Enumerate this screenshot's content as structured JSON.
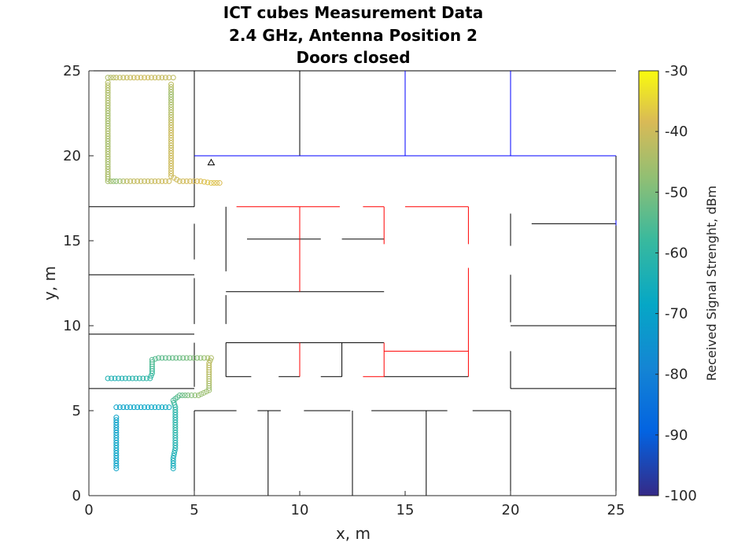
{
  "chart_data": {
    "type": "scatter",
    "title": [
      "ICT cubes Measurement Data",
      "2.4 GHz, Antenna Position 2",
      "Doors closed"
    ],
    "xlabel": "x, m",
    "ylabel": "y, m",
    "xlim": [
      0,
      25
    ],
    "ylim": [
      0,
      25
    ],
    "x_ticks": [
      "0",
      "5",
      "10",
      "15",
      "20",
      "25"
    ],
    "y_ticks": [
      "0",
      "5",
      "10",
      "15",
      "20",
      "25"
    ],
    "grid": false,
    "colorbar": {
      "label": "Received Signal Strenght, dBm",
      "range": [
        -100,
        -30
      ],
      "ticks": [
        "-30",
        "-40",
        "-50",
        "-60",
        "-70",
        "-80",
        "-90",
        "-100"
      ],
      "colormap": "parula"
    },
    "antenna": {
      "x": 5.8,
      "y": 19.6,
      "marker": "triangle"
    },
    "colors": {
      "black_walls": "#000000",
      "blue_walls": "#0000ff",
      "red_walls": "#ff0000",
      "marker_edge": "#000000"
    },
    "walls": {
      "black": [
        [
          [
            0,
            25
          ],
          [
            25,
            25
          ]
        ],
        [
          [
            0,
            0
          ],
          [
            25,
            0
          ]
        ],
        [
          [
            0,
            0
          ],
          [
            0,
            25
          ]
        ],
        [
          [
            25,
            0
          ],
          [
            25,
            20
          ]
        ],
        [
          [
            5,
            25
          ],
          [
            5,
            20
          ]
        ],
        [
          [
            10,
            25
          ],
          [
            10,
            20
          ]
        ],
        [
          [
            5,
            20
          ],
          [
            5,
            17
          ]
        ],
        [
          [
            5,
            16
          ],
          [
            5,
            13.9
          ]
        ],
        [
          [
            5,
            12.8
          ],
          [
            5,
            10.1
          ]
        ],
        [
          [
            5,
            9
          ],
          [
            5,
            6.4
          ]
        ],
        [
          [
            5,
            5
          ],
          [
            5,
            0
          ]
        ],
        [
          [
            0,
            17
          ],
          [
            5,
            17
          ]
        ],
        [
          [
            0,
            13
          ],
          [
            5,
            13
          ]
        ],
        [
          [
            0,
            9.5
          ],
          [
            5,
            9.5
          ]
        ],
        [
          [
            0,
            6.3
          ],
          [
            5,
            6.3
          ]
        ],
        [
          [
            6.5,
            17
          ],
          [
            6.5,
            13.2
          ]
        ],
        [
          [
            6.5,
            11.8
          ],
          [
            6.5,
            10.1
          ]
        ],
        [
          [
            6.5,
            9
          ],
          [
            6.5,
            7
          ]
        ],
        [
          [
            6.5,
            12
          ],
          [
            14,
            12
          ]
        ],
        [
          [
            6.5,
            9
          ],
          [
            14,
            9
          ]
        ],
        [
          [
            7.5,
            15.1
          ],
          [
            11,
            15.1
          ]
        ],
        [
          [
            12,
            15.1
          ],
          [
            14,
            15.1
          ]
        ],
        [
          [
            6.5,
            7
          ],
          [
            7.7,
            7
          ]
        ],
        [
          [
            9,
            7
          ],
          [
            10,
            7
          ]
        ],
        [
          [
            11,
            7
          ],
          [
            12,
            7
          ]
        ],
        [
          [
            12,
            9
          ],
          [
            12,
            7
          ]
        ],
        [
          [
            14,
            7
          ],
          [
            18,
            7
          ]
        ],
        [
          [
            5,
            5
          ],
          [
            7,
            5
          ]
        ],
        [
          [
            8,
            5
          ],
          [
            9.1,
            5
          ]
        ],
        [
          [
            10.2,
            5
          ],
          [
            12.4,
            5
          ]
        ],
        [
          [
            13.4,
            5
          ],
          [
            17,
            5
          ]
        ],
        [
          [
            18.2,
            5
          ],
          [
            20,
            5
          ]
        ],
        [
          [
            8.5,
            5
          ],
          [
            8.5,
            0
          ]
        ],
        [
          [
            12.5,
            5
          ],
          [
            12.5,
            0
          ]
        ],
        [
          [
            16,
            5
          ],
          [
            16,
            0
          ]
        ],
        [
          [
            20,
            5
          ],
          [
            20,
            0
          ]
        ],
        [
          [
            20,
            16.6
          ],
          [
            20,
            14.7
          ]
        ],
        [
          [
            20,
            13
          ],
          [
            20,
            10.2
          ]
        ],
        [
          [
            20,
            8.5
          ],
          [
            20,
            6.3
          ]
        ],
        [
          [
            20,
            10
          ],
          [
            25,
            10
          ]
        ],
        [
          [
            20,
            6.3
          ],
          [
            25,
            6.3
          ]
        ],
        [
          [
            21,
            16
          ],
          [
            25,
            16
          ]
        ]
      ],
      "blue": [
        [
          [
            5,
            20
          ],
          [
            25,
            20
          ]
        ],
        [
          [
            15,
            25
          ],
          [
            15,
            20
          ]
        ],
        [
          [
            20,
            25
          ],
          [
            20,
            20
          ]
        ],
        [
          [
            25,
            16.2
          ],
          [
            25,
            15.9
          ]
        ]
      ],
      "red": [
        [
          [
            7,
            17
          ],
          [
            11.9,
            17
          ]
        ],
        [
          [
            13,
            17
          ],
          [
            14,
            17
          ]
        ],
        [
          [
            15,
            17
          ],
          [
            18,
            17
          ]
        ],
        [
          [
            10,
            17
          ],
          [
            10,
            12
          ]
        ],
        [
          [
            14,
            17
          ],
          [
            14,
            14.8
          ]
        ],
        [
          [
            18,
            17
          ],
          [
            18,
            14.8
          ]
        ],
        [
          [
            18,
            13.4
          ],
          [
            18,
            7
          ]
        ],
        [
          [
            14,
            9
          ],
          [
            14,
            7
          ]
        ],
        [
          [
            14,
            8.5
          ],
          [
            18,
            8.5
          ]
        ],
        [
          [
            10,
            9
          ],
          [
            10,
            7
          ]
        ],
        [
          [
            13,
            7
          ],
          [
            14,
            7
          ]
        ]
      ]
    },
    "series": [
      {
        "points": [
          [
            0.9,
            24.6,
            -44
          ],
          [
            1.3,
            24.6,
            -42
          ],
          [
            1.8,
            24.6,
            -41
          ],
          [
            2.3,
            24.6,
            -40
          ],
          [
            2.8,
            24.6,
            -40
          ],
          [
            3.3,
            24.6,
            -41
          ],
          [
            3.8,
            24.6,
            -41
          ],
          [
            4.0,
            24.6,
            -42
          ],
          [
            0.9,
            24.3,
            -43
          ],
          [
            0.9,
            23.7,
            -44
          ],
          [
            0.9,
            23.1,
            -44
          ],
          [
            0.9,
            22.5,
            -45
          ],
          [
            0.9,
            21.9,
            -45
          ],
          [
            0.9,
            21.3,
            -44
          ],
          [
            0.9,
            20.7,
            -45
          ],
          [
            0.9,
            20.1,
            -44
          ],
          [
            0.9,
            19.5,
            -45
          ],
          [
            0.9,
            18.9,
            -44
          ],
          [
            0.9,
            18.5,
            -45
          ],
          [
            1.3,
            18.5,
            -48
          ],
          [
            1.8,
            18.5,
            -42
          ],
          [
            2.3,
            18.5,
            -41
          ],
          [
            2.8,
            18.5,
            -41
          ],
          [
            3.3,
            18.5,
            -40
          ],
          [
            3.8,
            18.5,
            -40
          ],
          [
            3.9,
            24.2,
            -42
          ],
          [
            3.9,
            23.6,
            -46
          ],
          [
            3.9,
            23.0,
            -44
          ],
          [
            3.9,
            22.4,
            -43
          ],
          [
            3.9,
            21.8,
            -41
          ],
          [
            3.9,
            21.2,
            -40
          ],
          [
            3.9,
            20.6,
            -41
          ],
          [
            3.9,
            20.0,
            -40
          ],
          [
            3.9,
            19.4,
            -40
          ],
          [
            3.9,
            18.8,
            -40
          ],
          [
            4.3,
            18.5,
            -40
          ],
          [
            4.8,
            18.5,
            -39
          ],
          [
            5.3,
            18.5,
            -38
          ],
          [
            5.8,
            18.4,
            -37
          ],
          [
            6.2,
            18.4,
            -38
          ],
          [
            0.9,
            6.9,
            -63
          ],
          [
            1.4,
            6.9,
            -64
          ],
          [
            1.9,
            6.9,
            -62
          ],
          [
            2.4,
            6.9,
            -61
          ],
          [
            2.9,
            6.9,
            -60
          ],
          [
            3.0,
            7.2,
            -58
          ],
          [
            3.0,
            7.6,
            -56
          ],
          [
            3.0,
            8.0,
            -55
          ],
          [
            3.3,
            8.1,
            -54
          ],
          [
            3.8,
            8.1,
            -53
          ],
          [
            4.3,
            8.1,
            -52
          ],
          [
            4.8,
            8.1,
            -50
          ],
          [
            5.3,
            8.1,
            -48
          ],
          [
            5.8,
            8.1,
            -44
          ],
          [
            5.7,
            7.8,
            -42
          ],
          [
            5.7,
            7.4,
            -42
          ],
          [
            5.7,
            7.0,
            -43
          ],
          [
            5.7,
            6.6,
            -44
          ],
          [
            5.7,
            6.2,
            -46
          ],
          [
            5.2,
            5.9,
            -47
          ],
          [
            4.7,
            5.9,
            -50
          ],
          [
            4.3,
            5.9,
            -53
          ],
          [
            4.0,
            5.6,
            -56
          ],
          [
            4.1,
            5.2,
            -60
          ],
          [
            4.1,
            4.6,
            -62
          ],
          [
            4.1,
            4.0,
            -60
          ],
          [
            4.1,
            3.4,
            -62
          ],
          [
            4.1,
            2.8,
            -63
          ],
          [
            4.0,
            2.2,
            -65
          ],
          [
            4.0,
            1.6,
            -66
          ],
          [
            1.3,
            5.2,
            -70
          ],
          [
            1.8,
            5.2,
            -70
          ],
          [
            2.3,
            5.2,
            -69
          ],
          [
            2.8,
            5.2,
            -69
          ],
          [
            3.3,
            5.2,
            -68
          ],
          [
            3.8,
            5.2,
            -67
          ],
          [
            1.3,
            4.6,
            -70
          ],
          [
            1.3,
            4.0,
            -71
          ],
          [
            1.3,
            3.4,
            -70
          ],
          [
            1.3,
            2.8,
            -69
          ],
          [
            1.3,
            2.2,
            -70
          ],
          [
            1.3,
            1.6,
            -70
          ]
        ]
      }
    ]
  }
}
